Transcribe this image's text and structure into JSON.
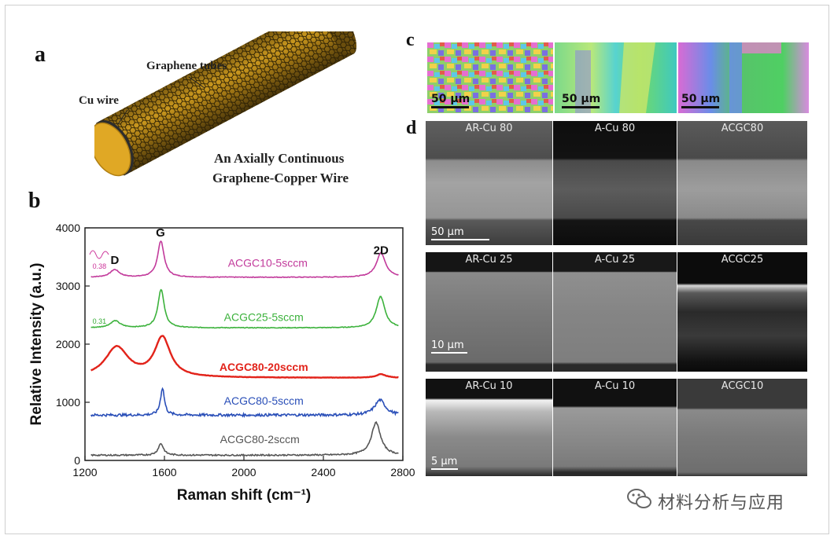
{
  "panel_a": {
    "label": "a",
    "graphene_tubes": "Graphene tubes",
    "cu_wire": "Cu wire",
    "title_line1": "An Axially Continuous",
    "title_line2": "Graphene-Copper Wire"
  },
  "panel_b": {
    "label": "b"
  },
  "panel_c": {
    "label": "c",
    "scale_labels": [
      "50 μm",
      "50 μm",
      "50 μm"
    ]
  },
  "panel_d": {
    "label": "d",
    "rows": [
      {
        "tiles": [
          "AR-Cu 80",
          "A-Cu 80",
          "ACGC80"
        ],
        "scale": "50 μm"
      },
      {
        "tiles": [
          "AR-Cu 25",
          "A-Cu 25",
          "ACGC25"
        ],
        "scale": "10 μm"
      },
      {
        "tiles": [
          "AR-Cu 10",
          "A-Cu 10",
          "ACGC10"
        ],
        "scale": "5 μm"
      }
    ]
  },
  "watermark": {
    "text": "材料分析与应用",
    "icon": "wechat-icon"
  },
  "chart_data": {
    "type": "line",
    "xlabel": "Raman shift (cm⁻¹)",
    "ylabel": "Relative Intensity (a.u.)",
    "xlim": [
      1200,
      2800
    ],
    "ylim": [
      0,
      4000
    ],
    "xticks": [
      1200,
      1600,
      2000,
      2400,
      2800
    ],
    "yticks": [
      0,
      1000,
      2000,
      3000,
      4000
    ],
    "grid": false,
    "peak_labels": [
      {
        "text": "D",
        "x": 1350,
        "y": 3380
      },
      {
        "text": "G",
        "x": 1580,
        "y": 3850
      },
      {
        "text": "2D",
        "x": 2690,
        "y": 3550
      }
    ],
    "annotations": [
      {
        "text": "0.38",
        "x": 1230,
        "y": 3300,
        "color": "#cc3399"
      },
      {
        "text": "0.31",
        "x": 1230,
        "y": 2350,
        "color": "#33aa33"
      }
    ],
    "series": [
      {
        "name": "ACGC10-5sccm",
        "color": "#c23a9b",
        "baseline": 3150,
        "peaks": [
          {
            "x": 1350,
            "h": 130,
            "w": 28
          },
          {
            "x": 1582,
            "h": 620,
            "w": 20
          },
          {
            "x": 2690,
            "h": 420,
            "w": 28
          }
        ],
        "noise": 6
      },
      {
        "name": "ACGC25-5sccm",
        "color": "#3cb23c",
        "baseline": 2280,
        "peaks": [
          {
            "x": 1352,
            "h": 120,
            "w": 30
          },
          {
            "x": 1583,
            "h": 660,
            "w": 19
          },
          {
            "x": 2688,
            "h": 540,
            "w": 26
          }
        ],
        "noise": 6
      },
      {
        "name": "ACGC80-20sccm",
        "color": "#e2231a",
        "baseline": 1420,
        "peaks": [
          {
            "x": 1360,
            "h": 520,
            "w": 70
          },
          {
            "x": 1590,
            "h": 680,
            "w": 48
          },
          {
            "x": 2690,
            "h": 60,
            "w": 30
          }
        ],
        "noise": 3
      },
      {
        "name": "ACGC80-5sccm",
        "color": "#2a4fb8",
        "baseline": 780,
        "peaks": [
          {
            "x": 1590,
            "h": 470,
            "w": 12
          },
          {
            "x": 2685,
            "h": 260,
            "w": 32
          }
        ],
        "noise": 22
      },
      {
        "name": "ACGC80-2sccm",
        "color": "#555555",
        "baseline": 90,
        "peaks": [
          {
            "x": 1582,
            "h": 200,
            "w": 16
          },
          {
            "x": 2665,
            "h": 560,
            "w": 28
          }
        ],
        "noise": 12
      }
    ]
  }
}
